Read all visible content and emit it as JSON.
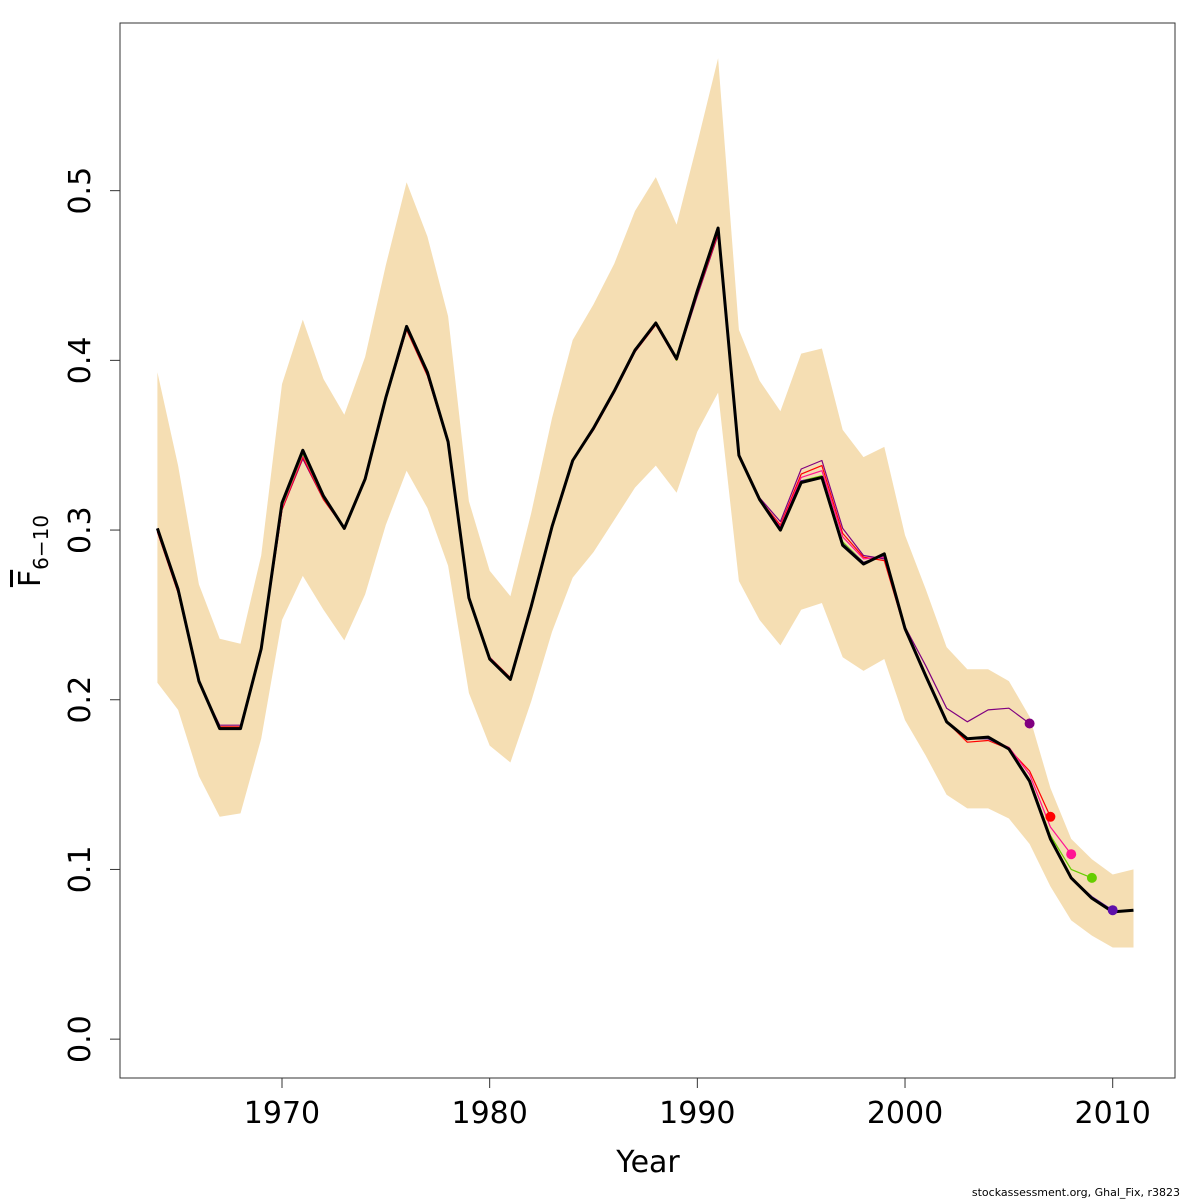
{
  "chart_data": {
    "type": "line",
    "xlabel": "Year",
    "ylabel": {
      "symbol": "F",
      "subscript": "6−10"
    },
    "xlim": [
      1962.2,
      2013.0
    ],
    "ylim": [
      -0.0229,
      0.5988
    ],
    "x_ticks": [
      1970,
      1980,
      1990,
      2000,
      2010
    ],
    "x_tick_labels": [
      "1970",
      "1980",
      "1990",
      "2000",
      "2010"
    ],
    "y_ticks": [
      0.0,
      0.1,
      0.2,
      0.3,
      0.4,
      0.5
    ],
    "y_tick_labels": [
      "0.0",
      "0.1",
      "0.2",
      "0.3",
      "0.4",
      "0.5"
    ],
    "grid": false,
    "legend": "none",
    "band_color": "#F5DEB3",
    "band": {
      "x": [
        1964,
        1965,
        1966,
        1967,
        1968,
        1969,
        1970,
        1971,
        1972,
        1973,
        1974,
        1975,
        1976,
        1977,
        1978,
        1979,
        1980,
        1981,
        1982,
        1983,
        1984,
        1985,
        1986,
        1987,
        1988,
        1989,
        1990,
        1991,
        1992,
        1993,
        1994,
        1995,
        1996,
        1997,
        1998,
        1999,
        2000,
        2001,
        2002,
        2003,
        2004,
        2005,
        2006,
        2007,
        2008,
        2009,
        2010,
        2011
      ],
      "upper": [
        0.393,
        0.338,
        0.268,
        0.236,
        0.233,
        0.285,
        0.386,
        0.424,
        0.389,
        0.368,
        0.402,
        0.456,
        0.505,
        0.473,
        0.426,
        0.317,
        0.276,
        0.261,
        0.31,
        0.366,
        0.412,
        0.433,
        0.457,
        0.488,
        0.508,
        0.48,
        0.528,
        0.578,
        0.418,
        0.388,
        0.37,
        0.404,
        0.407,
        0.359,
        0.343,
        0.349,
        0.297,
        0.265,
        0.231,
        0.218,
        0.218,
        0.211,
        0.19,
        0.148,
        0.118,
        0.106,
        0.097,
        0.1
      ],
      "lower": [
        0.21,
        0.194,
        0.155,
        0.131,
        0.133,
        0.177,
        0.247,
        0.273,
        0.253,
        0.235,
        0.262,
        0.303,
        0.335,
        0.313,
        0.279,
        0.204,
        0.173,
        0.163,
        0.199,
        0.24,
        0.272,
        0.287,
        0.306,
        0.325,
        0.338,
        0.322,
        0.358,
        0.381,
        0.27,
        0.247,
        0.232,
        0.253,
        0.257,
        0.225,
        0.217,
        0.224,
        0.188,
        0.167,
        0.144,
        0.136,
        0.136,
        0.13,
        0.115,
        0.09,
        0.07,
        0.061,
        0.054,
        0.054
      ]
    },
    "series": [
      {
        "color": "#800080",
        "width": 1.2,
        "marker": true,
        "x": [
          1964,
          1965,
          1966,
          1967,
          1968,
          1969,
          1970,
          1971,
          1972,
          1973,
          1974,
          1975,
          1976,
          1977,
          1978,
          1979,
          1980,
          1981,
          1982,
          1983,
          1984,
          1985,
          1986,
          1987,
          1988,
          1989,
          1990,
          1991,
          1992,
          1993,
          1994,
          1995,
          1996,
          1997,
          1998,
          1999,
          2000,
          2001,
          2002,
          2003,
          2004,
          2005,
          2006
        ],
        "y": [
          0.299,
          0.263,
          0.21,
          0.185,
          0.185,
          0.229,
          0.312,
          0.342,
          0.318,
          0.301,
          0.329,
          0.377,
          0.418,
          0.391,
          0.351,
          0.259,
          0.225,
          0.213,
          0.254,
          0.301,
          0.341,
          0.359,
          0.381,
          0.405,
          0.421,
          0.4,
          0.438,
          0.474,
          0.345,
          0.319,
          0.305,
          0.336,
          0.341,
          0.301,
          0.285,
          0.283,
          0.243,
          0.22,
          0.195,
          0.187,
          0.194,
          0.195,
          0.186
        ]
      },
      {
        "color": "#FF0000",
        "width": 1.2,
        "marker": true,
        "x": [
          1964,
          1965,
          1966,
          1967,
          1968,
          1969,
          1970,
          1971,
          1972,
          1973,
          1974,
          1975,
          1976,
          1977,
          1978,
          1979,
          1980,
          1981,
          1982,
          1983,
          1984,
          1985,
          1986,
          1987,
          1988,
          1989,
          1990,
          1991,
          1992,
          1993,
          1994,
          1995,
          1996,
          1997,
          1998,
          1999,
          2000,
          2001,
          2002,
          2003,
          2004,
          2005,
          2006,
          2007
        ],
        "y": [
          0.299,
          0.263,
          0.21,
          0.184,
          0.184,
          0.229,
          0.312,
          0.343,
          0.318,
          0.301,
          0.329,
          0.377,
          0.418,
          0.391,
          0.351,
          0.259,
          0.225,
          0.213,
          0.254,
          0.301,
          0.341,
          0.359,
          0.381,
          0.405,
          0.421,
          0.4,
          0.439,
          0.475,
          0.344,
          0.318,
          0.303,
          0.333,
          0.338,
          0.298,
          0.284,
          0.282,
          0.241,
          0.215,
          0.187,
          0.175,
          0.176,
          0.171,
          0.158,
          0.131
        ]
      },
      {
        "color": "#FF1493",
        "width": 1.2,
        "marker": true,
        "x": [
          1964,
          1965,
          1966,
          1967,
          1968,
          1969,
          1970,
          1971,
          1972,
          1973,
          1974,
          1975,
          1976,
          1977,
          1978,
          1979,
          1980,
          1981,
          1982,
          1983,
          1984,
          1985,
          1986,
          1987,
          1988,
          1989,
          1990,
          1991,
          1992,
          1993,
          1994,
          1995,
          1996,
          1997,
          1998,
          1999,
          2000,
          2001,
          2002,
          2003,
          2004,
          2005,
          2006,
          2007,
          2008
        ],
        "y": [
          0.3,
          0.264,
          0.211,
          0.183,
          0.183,
          0.23,
          0.313,
          0.344,
          0.319,
          0.301,
          0.33,
          0.377,
          0.419,
          0.392,
          0.352,
          0.26,
          0.225,
          0.212,
          0.255,
          0.302,
          0.341,
          0.36,
          0.381,
          0.405,
          0.422,
          0.4,
          0.44,
          0.476,
          0.344,
          0.318,
          0.302,
          0.331,
          0.335,
          0.296,
          0.283,
          0.284,
          0.241,
          0.214,
          0.187,
          0.177,
          0.177,
          0.172,
          0.156,
          0.125,
          0.109
        ]
      },
      {
        "color": "#66CD00",
        "width": 1.2,
        "marker": true,
        "x": [
          1964,
          1965,
          1966,
          1967,
          1968,
          1969,
          1970,
          1971,
          1972,
          1973,
          1974,
          1975,
          1976,
          1977,
          1978,
          1979,
          1980,
          1981,
          1982,
          1983,
          1984,
          1985,
          1986,
          1987,
          1988,
          1989,
          1990,
          1991,
          1992,
          1993,
          1994,
          1995,
          1996,
          1997,
          1998,
          1999,
          2000,
          2001,
          2002,
          2003,
          2004,
          2005,
          2006,
          2007,
          2008,
          2009
        ],
        "y": [
          0.3,
          0.264,
          0.211,
          0.183,
          0.183,
          0.23,
          0.314,
          0.345,
          0.319,
          0.301,
          0.33,
          0.378,
          0.419,
          0.392,
          0.352,
          0.26,
          0.224,
          0.212,
          0.255,
          0.302,
          0.341,
          0.36,
          0.382,
          0.406,
          0.422,
          0.4,
          0.441,
          0.477,
          0.344,
          0.318,
          0.301,
          0.329,
          0.332,
          0.293,
          0.281,
          0.285,
          0.241,
          0.214,
          0.187,
          0.177,
          0.177,
          0.171,
          0.153,
          0.12,
          0.1,
          0.095
        ]
      },
      {
        "color": "#5E0FAA",
        "width": 1.2,
        "marker": true,
        "x": [
          1964,
          1965,
          1966,
          1967,
          1968,
          1969,
          1970,
          1971,
          1972,
          1973,
          1974,
          1975,
          1976,
          1977,
          1978,
          1979,
          1980,
          1981,
          1982,
          1983,
          1984,
          1985,
          1986,
          1987,
          1988,
          1989,
          1990,
          1991,
          1992,
          1993,
          1994,
          1995,
          1996,
          1997,
          1998,
          1999,
          2000,
          2001,
          2002,
          2003,
          2004,
          2005,
          2006,
          2007,
          2008,
          2009,
          2010
        ],
        "y": [
          0.301,
          0.265,
          0.211,
          0.183,
          0.183,
          0.23,
          0.315,
          0.346,
          0.32,
          0.301,
          0.33,
          0.378,
          0.42,
          0.393,
          0.352,
          0.26,
          0.224,
          0.212,
          0.255,
          0.302,
          0.341,
          0.36,
          0.382,
          0.406,
          0.422,
          0.401,
          0.441,
          0.478,
          0.344,
          0.318,
          0.301,
          0.329,
          0.331,
          0.292,
          0.281,
          0.285,
          0.241,
          0.214,
          0.187,
          0.177,
          0.177,
          0.171,
          0.152,
          0.118,
          0.095,
          0.084,
          0.076
        ]
      },
      {
        "color": "#000000",
        "width": 3,
        "marker": false,
        "x": [
          1964,
          1965,
          1966,
          1967,
          1968,
          1969,
          1970,
          1971,
          1972,
          1973,
          1974,
          1975,
          1976,
          1977,
          1978,
          1979,
          1980,
          1981,
          1982,
          1983,
          1984,
          1985,
          1986,
          1987,
          1988,
          1989,
          1990,
          1991,
          1992,
          1993,
          1994,
          1995,
          1996,
          1997,
          1998,
          1999,
          2000,
          2001,
          2002,
          2003,
          2004,
          2005,
          2006,
          2007,
          2008,
          2009,
          2010,
          2011
        ],
        "y": [
          0.301,
          0.265,
          0.211,
          0.183,
          0.183,
          0.23,
          0.316,
          0.347,
          0.32,
          0.301,
          0.33,
          0.378,
          0.42,
          0.393,
          0.352,
          0.26,
          0.224,
          0.212,
          0.255,
          0.302,
          0.341,
          0.36,
          0.382,
          0.406,
          0.422,
          0.401,
          0.441,
          0.478,
          0.344,
          0.318,
          0.3,
          0.328,
          0.331,
          0.291,
          0.28,
          0.286,
          0.242,
          0.214,
          0.187,
          0.177,
          0.178,
          0.171,
          0.152,
          0.118,
          0.095,
          0.083,
          0.075,
          0.076
        ]
      }
    ]
  },
  "credit": "stockassessment.org, Ghal_Fix, r3823"
}
